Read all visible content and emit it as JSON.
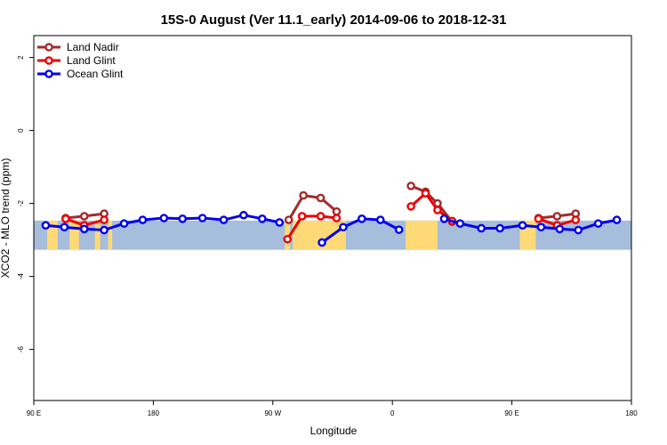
{
  "chart_data": {
    "type": "line",
    "title": "15S-0 August (Ver 11.1_early)   2014-09-06 to 2018-12-31",
    "xlabel": "Longitude",
    "ylabel": "XCO2 - MLO trend (ppm)",
    "xlim": [
      90,
      540
    ],
    "ylim": [
      -7.4,
      2.6
    ],
    "x_ticks": [
      {
        "value": 90,
        "label": "90 E"
      },
      {
        "value": 180,
        "label": "180"
      },
      {
        "value": 270,
        "label": "90 W"
      },
      {
        "value": 360,
        "label": "0"
      },
      {
        "value": 450,
        "label": "90 E"
      },
      {
        "value": 540,
        "label": "180"
      }
    ],
    "y_ticks": [
      {
        "value": 2,
        "label": "2"
      },
      {
        "value": 0,
        "label": "0"
      },
      {
        "value": -2,
        "label": "-2"
      },
      {
        "value": -4,
        "label": "-4"
      },
      {
        "value": -6,
        "label": "-6"
      }
    ],
    "background_map": {
      "description": "latitude band 15S-0 land/ocean strip",
      "ocean_color": "#a6bddb",
      "land_color": "#fed976",
      "y_range": [
        -3.27,
        -2.47
      ],
      "land_segments": [
        [
          100,
          108
        ],
        [
          117,
          124
        ],
        [
          136,
          140
        ],
        [
          146,
          149
        ],
        [
          279,
          283
        ],
        [
          285,
          325
        ],
        [
          370,
          394
        ],
        [
          456,
          468
        ]
      ]
    },
    "legend_position": "top-left",
    "series": [
      {
        "name": "Land Nadir",
        "color": "#a52a2a",
        "segments": [
          {
            "x": [
              114,
              128,
              143
            ],
            "y": [
              -2.4,
              -2.35,
              -2.28
            ]
          },
          {
            "x": [
              282,
              293,
              306,
              318
            ],
            "y": [
              -2.45,
              -1.78,
              -1.85,
              -2.22
            ]
          },
          {
            "x": [
              374,
              385,
              394,
              405
            ],
            "y": [
              -1.52,
              -1.68,
              -2.0,
              -2.5
            ]
          },
          {
            "x": [
              470,
              484,
              498
            ],
            "y": [
              -2.4,
              -2.35,
              -2.28
            ]
          }
        ]
      },
      {
        "name": "Land Glint",
        "color": "#ee0000",
        "segments": [
          {
            "x": [
              114,
              128,
              143
            ],
            "y": [
              -2.42,
              -2.6,
              -2.45
            ]
          },
          {
            "x": [
              281,
              292,
              306,
              318
            ],
            "y": [
              -2.98,
              -2.35,
              -2.35,
              -2.4
            ]
          },
          {
            "x": [
              374,
              385,
              394,
              405
            ],
            "y": [
              -2.08,
              -1.72,
              -2.18,
              -2.48
            ]
          },
          {
            "x": [
              470,
              484,
              498
            ],
            "y": [
              -2.42,
              -2.6,
              -2.45
            ]
          }
        ]
      },
      {
        "name": "Ocean Glint",
        "color": "#0000ee",
        "segments": [
          {
            "x": [
              99,
              113,
              128,
              143,
              158,
              172,
              188,
              202,
              217,
              233,
              248,
              262,
              275
            ],
            "y": [
              -2.6,
              -2.65,
              -2.7,
              -2.73,
              -2.55,
              -2.45,
              -2.4,
              -2.42,
              -2.4,
              -2.45,
              -2.32,
              -2.42,
              -2.52
            ]
          },
          {
            "x": [
              307,
              323,
              337,
              351,
              365
            ],
            "y": [
              -3.07,
              -2.65,
              -2.42,
              -2.45,
              -2.72
            ]
          },
          {
            "x": [
              399,
              411,
              427,
              441,
              458,
              472,
              486,
              500,
              515,
              529
            ],
            "y": [
              -2.42,
              -2.55,
              -2.68,
              -2.68,
              -2.6,
              -2.65,
              -2.7,
              -2.73,
              -2.55,
              -2.45
            ]
          }
        ]
      }
    ]
  }
}
